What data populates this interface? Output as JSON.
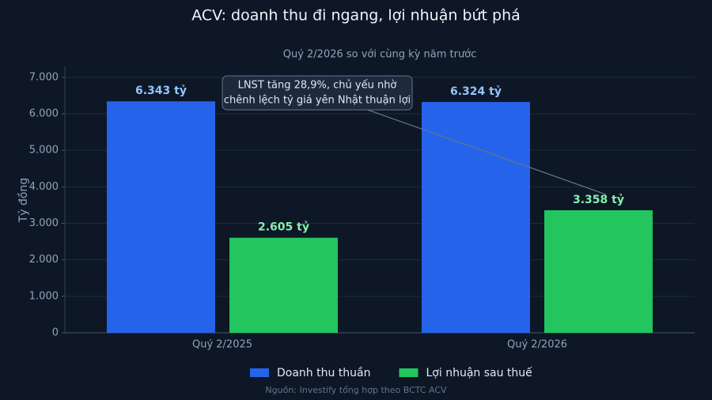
{
  "chart_data": {
    "type": "bar",
    "title": "ACV: doanh thu đi ngang, lợi nhuận bứt phá",
    "subtitle": "Quý 2/2026 so với cùng kỳ năm trước",
    "y_label": "Tỷ đồng",
    "source": "Nguồn: Investify tổng hợp theo BCTC ACV",
    "annotation": [
      "LNST tăng 28,9%, chủ yếu nhờ",
      "chênh lệch tỷ giá yên Nhật thuận lợi"
    ],
    "categories": [
      "Quý 2/2025",
      "Quý 2/2026"
    ],
    "series": [
      {
        "name": "Doanh thu thuần",
        "color": "#2563eb",
        "label_color": "#93c5fd",
        "values": [
          6343,
          6324
        ],
        "value_labels": [
          "6.343 tỷ",
          "6.324 tỷ"
        ]
      },
      {
        "name": "Lợi nhuận sau thuế",
        "color": "#22c55e",
        "label_color": "#86efac",
        "values": [
          2605,
          3358
        ],
        "value_labels": [
          "2.605 tỷ",
          "3.358 tỷ"
        ]
      }
    ],
    "ylim": [
      0,
      7300
    ],
    "yticks": [
      0,
      {
        "value": 1000,
        "label": "1.000"
      },
      {
        "value": 2000,
        "label": "2.000"
      },
      {
        "value": 3000,
        "label": "3.000"
      },
      {
        "value": 4000,
        "label": "4.000"
      },
      {
        "value": 5000,
        "label": "5.000"
      },
      {
        "value": 6000,
        "label": "6.000"
      },
      {
        "value": 7000,
        "label": "7.000"
      }
    ],
    "grid": true
  }
}
